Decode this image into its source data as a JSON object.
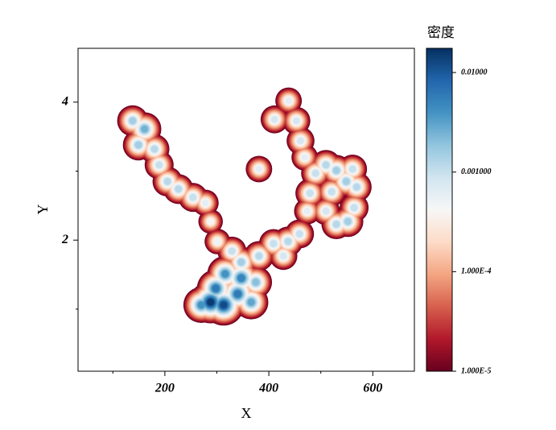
{
  "chart_data": {
    "type": "density",
    "x_label": "X",
    "y_label": "Y",
    "colorbar_label": "密度",
    "xlim": [
      33,
      680
    ],
    "ylim": [
      0.1,
      4.78
    ],
    "xticks": [
      200,
      400,
      600
    ],
    "xminorticks": [
      100,
      300,
      500
    ],
    "yticks": [
      2,
      4
    ],
    "yminorticks": [
      1,
      3
    ],
    "colormap": [
      "#67001f",
      "#b2182b",
      "#d6604d",
      "#f4a582",
      "#fddbc7",
      "#f7f7f7",
      "#d1e5f0",
      "#92c5de",
      "#4393c3",
      "#2166ac",
      "#053061"
    ],
    "clim": [
      1e-05,
      0.0175
    ],
    "color_scale": "log",
    "cticks": [
      {
        "value": 0.01,
        "label": "0.01000"
      },
      {
        "value": 0.001,
        "label": "0.001000"
      },
      {
        "value": 0.0001,
        "label": "1.000E-4"
      },
      {
        "value": 1e-05,
        "label": "1.000E-5"
      }
    ],
    "x": [
      138,
      161,
      149,
      180,
      189,
      205,
      226,
      254,
      278,
      288,
      301,
      329,
      347,
      316,
      298,
      288,
      313,
      340,
      366,
      375,
      347,
      270,
      381,
      409,
      437,
      459,
      428,
      474,
      479,
      490,
      510,
      530,
      549,
      561,
      569,
      521,
      510,
      530,
      552,
      564,
      469,
      461,
      453,
      411,
      438,
      381
    ],
    "y": [
      3.73,
      3.61,
      3.38,
      3.32,
      3.09,
      2.85,
      2.74,
      2.62,
      2.54,
      2.27,
      1.98,
      1.84,
      1.68,
      1.51,
      1.3,
      1.1,
      1.06,
      1.22,
      1.1,
      1.39,
      1.45,
      1.06,
      1.77,
      1.95,
      1.98,
      2.09,
      1.77,
      2.42,
      2.68,
      2.97,
      3.09,
      3.01,
      2.85,
      3.03,
      2.77,
      2.7,
      2.42,
      2.23,
      2.27,
      2.47,
      3.2,
      3.44,
      3.73,
      3.75,
      4.02,
      3.03
    ],
    "density": [
      0.0015,
      0.0025,
      0.0015,
      0.0012,
      0.001,
      0.0012,
      0.0012,
      0.001,
      0.0006,
      0.0004,
      0.0005,
      0.001,
      0.0015,
      0.004,
      0.006,
      0.015,
      0.012,
      0.006,
      0.003,
      0.002,
      0.005,
      0.004,
      0.0012,
      0.001,
      0.0012,
      0.001,
      0.0008,
      0.0006,
      0.001,
      0.001,
      0.0012,
      0.0015,
      0.0015,
      0.001,
      0.0012,
      0.001,
      0.0008,
      0.0012,
      0.0015,
      0.001,
      0.0006,
      0.0008,
      0.0008,
      0.0008,
      0.0006,
      0.0006
    ]
  }
}
